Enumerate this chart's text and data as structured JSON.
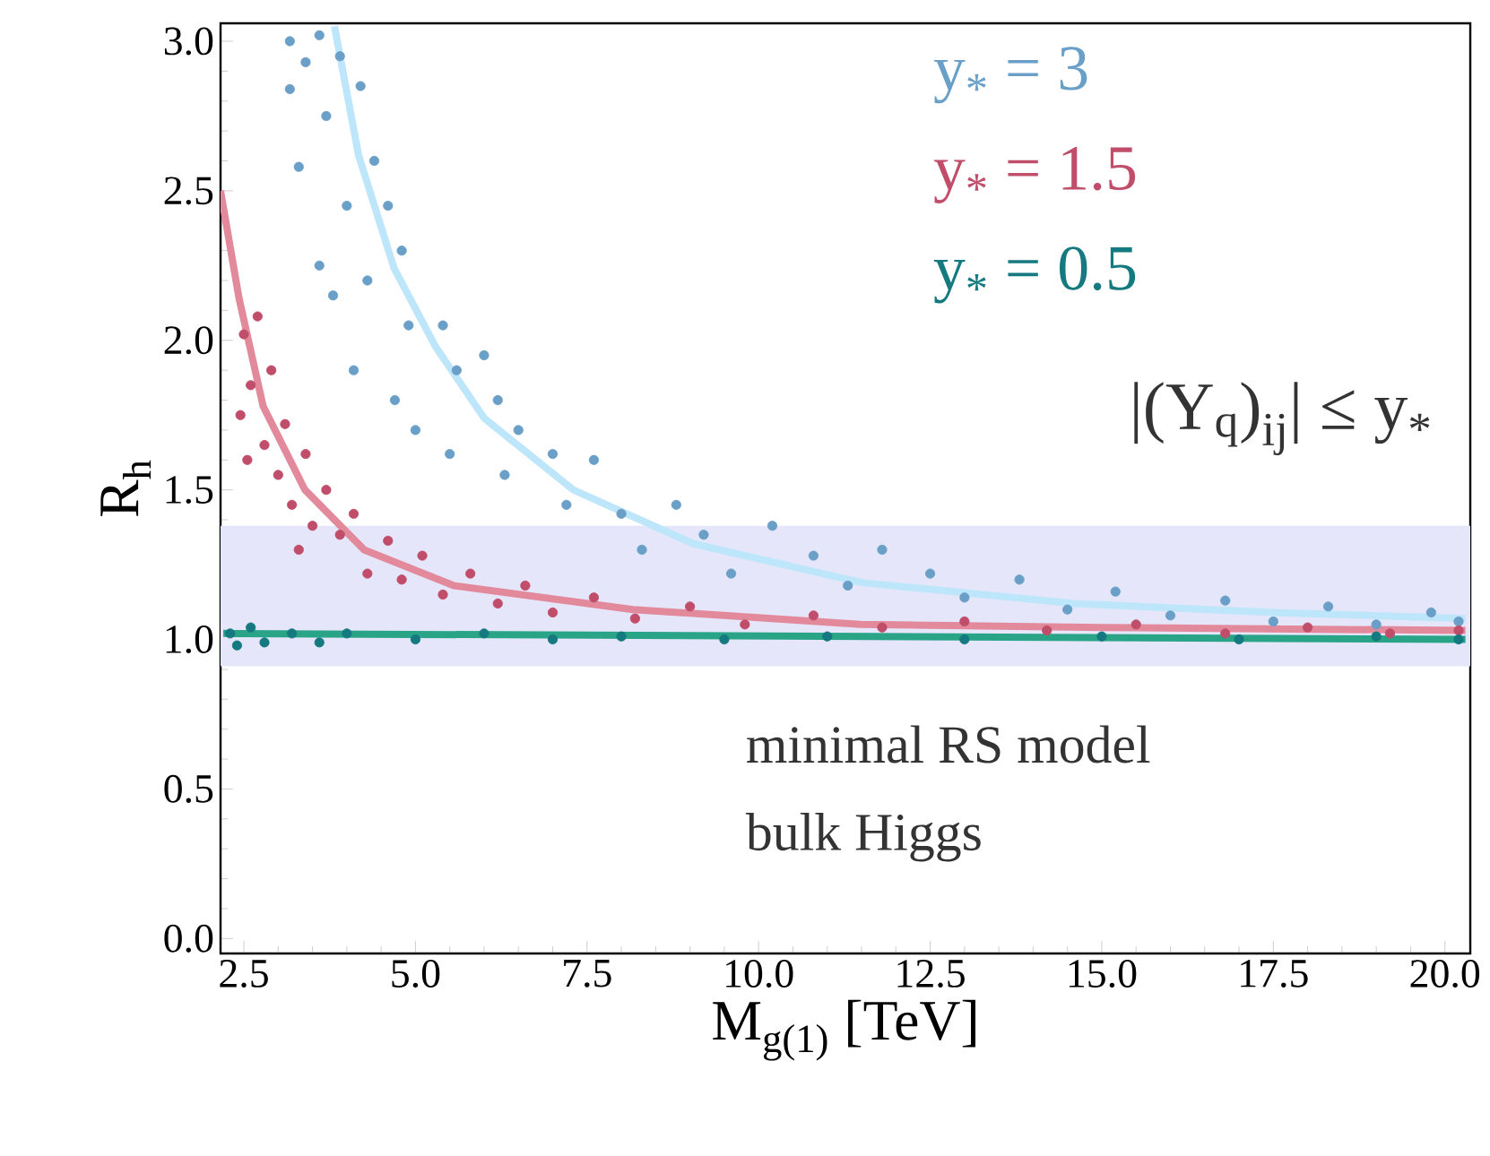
{
  "chart_data": {
    "type": "scatter",
    "xlabel": "M$_{g(1)}$  [TeV]",
    "ylabel": "R$_{h}$",
    "xlim": [
      2.16,
      20.37
    ],
    "ylim": [
      -0.05,
      3.06
    ],
    "xticks": [
      2.5,
      {
        "value": 5,
        "label": "5.0"
      },
      7.5,
      {
        "value": 10,
        "label": "10.0"
      },
      12.5,
      {
        "value": 15,
        "label": "15.0"
      },
      17.5,
      {
        "value": 20,
        "label": "20.0"
      }
    ],
    "yticks": [
      {
        "value": 0,
        "label": "0.0"
      },
      0.5,
      {
        "value": 1,
        "label": "1.0"
      },
      1.5,
      {
        "value": 2,
        "label": "2.0"
      },
      2.5,
      {
        "value": 3,
        "label": "3.0"
      }
    ],
    "grid": false,
    "bands": [
      {
        "axis": "y",
        "from": 0.91,
        "to": 1.38,
        "color": "#e6e6fa"
      }
    ],
    "annotations": [
      "|(Y$_{q}$)$_{ij}$| ≤ y$_{*}$",
      "minimal RS model",
      "bulk Higgs"
    ],
    "series": [
      {
        "name": "y$_{*}$ = 3",
        "color": "#6a9fc8",
        "marker": "circle",
        "x": [
          3.17,
          3.17,
          3.4,
          3.3,
          3.6,
          3.7,
          3.9,
          4.0,
          3.8,
          3.6,
          4.2,
          4.4,
          4.3,
          4.1,
          4.6,
          4.8,
          4.9,
          4.7,
          5.0,
          5.4,
          5.6,
          5.5,
          6.0,
          6.2,
          6.3,
          6.5,
          7.0,
          7.2,
          7.6,
          8.0,
          8.3,
          8.8,
          9.2,
          9.6,
          10.2,
          10.8,
          11.3,
          11.8,
          12.5,
          13.0,
          13.8,
          14.5,
          15.2,
          16.0,
          16.8,
          17.5,
          18.3,
          19.0,
          19.8,
          20.2
        ],
        "values": [
          3.0,
          2.84,
          2.93,
          2.58,
          3.02,
          2.75,
          2.95,
          2.45,
          2.15,
          2.25,
          2.85,
          2.6,
          2.2,
          1.9,
          2.45,
          2.3,
          2.05,
          1.8,
          1.7,
          2.05,
          1.9,
          1.62,
          1.95,
          1.8,
          1.55,
          1.7,
          1.62,
          1.45,
          1.6,
          1.42,
          1.3,
          1.45,
          1.35,
          1.22,
          1.38,
          1.28,
          1.18,
          1.3,
          1.22,
          1.14,
          1.2,
          1.1,
          1.16,
          1.08,
          1.13,
          1.06,
          1.11,
          1.05,
          1.09,
          1.06
        ]
      },
      {
        "type": "line",
        "color": "#bde6fa",
        "x": [
          3.82,
          4.17,
          4.69,
          5.29,
          6.0,
          7.3,
          9.05,
          11.5,
          14.6,
          17.5,
          20.3
        ],
        "values": [
          3.05,
          2.62,
          2.24,
          1.98,
          1.74,
          1.5,
          1.32,
          1.19,
          1.12,
          1.09,
          1.07
        ]
      },
      {
        "name": "y$_{*}$ = 1.5",
        "color": "#c04d6a",
        "marker": "circle",
        "x": [
          2.5,
          2.6,
          2.45,
          2.7,
          2.55,
          2.8,
          2.9,
          3.0,
          3.1,
          3.2,
          3.4,
          3.5,
          3.3,
          3.7,
          3.9,
          4.1,
          4.3,
          4.6,
          4.8,
          5.1,
          5.4,
          5.8,
          6.2,
          6.6,
          7.0,
          7.6,
          8.2,
          9.0,
          9.8,
          10.8,
          11.8,
          13.0,
          14.2,
          15.5,
          16.8,
          18.0,
          19.2,
          20.2
        ],
        "values": [
          2.02,
          1.85,
          1.75,
          2.08,
          1.6,
          1.65,
          1.9,
          1.55,
          1.72,
          1.45,
          1.62,
          1.38,
          1.3,
          1.5,
          1.35,
          1.42,
          1.22,
          1.33,
          1.2,
          1.28,
          1.15,
          1.22,
          1.12,
          1.18,
          1.09,
          1.14,
          1.07,
          1.11,
          1.05,
          1.08,
          1.04,
          1.06,
          1.03,
          1.05,
          1.02,
          1.04,
          1.02,
          1.03
        ]
      },
      {
        "type": "line",
        "color": "#e28a9b",
        "x": [
          2.16,
          2.43,
          2.78,
          3.39,
          4.25,
          5.56,
          8.17,
          11.48,
          15.0,
          20.3
        ],
        "values": [
          2.5,
          2.14,
          1.78,
          1.5,
          1.3,
          1.18,
          1.1,
          1.05,
          1.04,
          1.03
        ]
      },
      {
        "name": "y$_{*}$ = 0.5",
        "color": "#157a80",
        "marker": "circle",
        "x": [
          2.3,
          2.4,
          2.6,
          2.8,
          3.2,
          3.6,
          4.0,
          5.0,
          6.0,
          7.0,
          8.0,
          9.5,
          11.0,
          13.0,
          15.0,
          17.0,
          19.0,
          20.2
        ],
        "values": [
          1.02,
          0.98,
          1.04,
          0.99,
          1.02,
          0.99,
          1.02,
          1.0,
          1.02,
          1.0,
          1.01,
          1.0,
          1.01,
          1.0,
          1.01,
          1.0,
          1.01,
          1.0
        ]
      },
      {
        "type": "line",
        "color": "#2aa487",
        "x": [
          2.2,
          20.3
        ],
        "values": [
          1.02,
          1.0
        ]
      }
    ]
  }
}
